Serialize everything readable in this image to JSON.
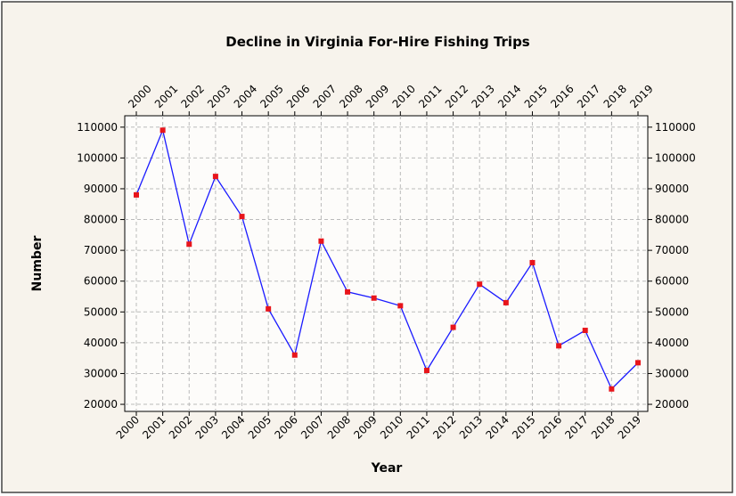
{
  "chart_data": {
    "type": "line",
    "title": "Decline in Virginia For-Hire Fishing Trips",
    "xlabel": "Year",
    "ylabel": "Number",
    "categories": [
      "2000",
      "2001",
      "2002",
      "2003",
      "2004",
      "2005",
      "2006",
      "2007",
      "2008",
      "2009",
      "2010",
      "2011",
      "2012",
      "2013",
      "2014",
      "2015",
      "2016",
      "2017",
      "2018",
      "2019"
    ],
    "series": [
      {
        "name": "Number",
        "color": "#1a1aff",
        "marker_color": "#e8151b",
        "values": [
          88000,
          109000,
          72000,
          94000,
          81000,
          51000,
          36000,
          73000,
          56500,
          54500,
          52000,
          31000,
          45000,
          59000,
          53000,
          66000,
          39000,
          44000,
          25000,
          33500
        ]
      }
    ],
    "ylim": [
      17700,
      113700
    ],
    "yticks": [
      20000,
      30000,
      40000,
      50000,
      60000,
      70000,
      80000,
      90000,
      100000,
      110000
    ],
    "grid": true
  }
}
